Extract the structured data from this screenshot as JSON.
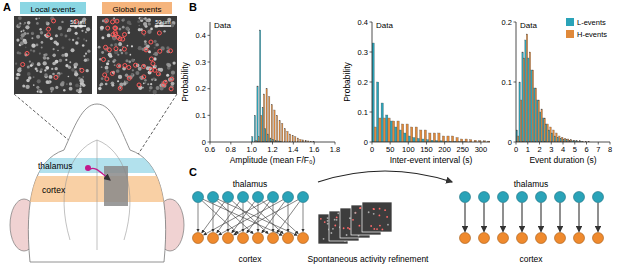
{
  "chart_data": [
    {
      "type": "histogram",
      "title": "Data",
      "x_label": "Amplitude (mean F/F₀)",
      "y_label": "Probability",
      "bins": [
        1,
        1.025,
        1.05,
        1.075,
        1.1,
        1.125,
        1.15,
        1.175,
        1.2,
        1.225,
        1.25,
        1.275,
        1.3,
        1.325,
        1.35,
        1.375,
        1.4,
        1.425,
        1.45,
        1.475,
        1.5,
        1.525,
        1.55,
        1.575,
        1.6
      ],
      "series": [
        {
          "color": "#2aa3b8",
          "values": [
            0.02,
            0.1,
            0.21,
            0.42,
            0.13,
            0.05,
            0.03,
            0.015,
            0.01,
            0.006,
            0.004,
            0.003,
            0,
            0,
            0,
            0,
            0,
            0,
            0,
            0,
            0,
            0,
            0,
            0
          ]
        },
        {
          "color": "#e0893a",
          "values": [
            0,
            0.005,
            0.02,
            0.1,
            0.18,
            0.2,
            0.17,
            0.14,
            0.12,
            0.1,
            0.08,
            0.07,
            0.05,
            0.04,
            0.03,
            0.025,
            0.02,
            0.015,
            0.01,
            0.008,
            0.006,
            0.004,
            0.003,
            0.002
          ]
        }
      ],
      "xlim": [
        0.6,
        1.8
      ],
      "xticks": [
        0.6,
        0.8,
        {
          "value": 1,
          "label": "1.0"
        },
        1.2,
        1.4,
        1.6,
        1.8
      ],
      "ylim": [
        0,
        0.45
      ],
      "yticks": [
        0,
        0.1,
        0.2,
        0.3,
        0.4
      ]
    },
    {
      "type": "histogram",
      "title": "Data",
      "x_label": "Inter-event interval (s)",
      "y_label": "Probability",
      "bins": [
        0,
        12.5,
        25,
        37.5,
        50,
        62.5,
        75,
        87.5,
        100,
        112.5,
        125,
        137.5,
        150,
        162.5,
        175,
        187.5,
        200,
        212.5,
        225,
        237.5,
        250,
        262.5,
        275,
        287.5,
        300,
        312.5,
        325
      ],
      "series": [
        {
          "color": "#2aa3b8",
          "values": [
            0.33,
            0.2,
            0.13,
            0.09,
            0.07,
            0.05,
            0.04,
            0.03,
            0.02,
            0.015,
            0.012,
            0.01,
            0.008,
            0.006,
            0.005,
            0.004,
            0.003,
            0.002,
            0.002,
            0.001,
            0.001,
            0,
            0,
            0,
            0,
            0
          ]
        },
        {
          "color": "#e0893a",
          "values": [
            0.05,
            0.08,
            0.08,
            0.08,
            0.07,
            0.07,
            0.06,
            0.06,
            0.05,
            0.05,
            0.04,
            0.04,
            0.03,
            0.03,
            0.03,
            0.02,
            0.02,
            0.02,
            0.015,
            0.01,
            0.01,
            0.008,
            0.006,
            0.005,
            0.004,
            0.003
          ]
        }
      ],
      "xlim": [
        0,
        325
      ],
      "xticks": [
        0,
        50,
        100,
        150,
        200,
        250,
        300
      ],
      "ylim": [
        0,
        0.4
      ],
      "yticks": [
        0,
        0.1,
        0.2,
        0.3,
        0.4
      ]
    },
    {
      "type": "histogram",
      "title": "Data",
      "x_label": "Event duration (s)",
      "legend": "upper right",
      "bins": [
        0,
        0.25,
        0.5,
        0.75,
        1,
        1.25,
        1.5,
        1.75,
        2,
        2.25,
        2.5,
        2.75,
        3,
        3.25,
        3.5,
        3.75,
        4,
        4.25,
        4.5,
        4.75,
        5,
        5.25,
        5.5,
        5.75,
        6,
        6.25,
        6.5,
        6.75,
        7
      ],
      "series": [
        {
          "name": "L-events",
          "color": "#2aa3b8",
          "values": [
            0.02,
            0.1,
            0.15,
            0.17,
            0.14,
            0.12,
            0.09,
            0.07,
            0.05,
            0.04,
            0.03,
            0.02,
            0.015,
            0.01,
            0.008,
            0.006,
            0.005,
            0.004,
            0.003,
            0.002,
            0.002,
            0.001,
            0.001,
            0,
            0,
            0,
            0,
            0
          ]
        },
        {
          "name": "H-events",
          "color": "#e0893a",
          "values": [
            0.01,
            0.07,
            0.14,
            0.18,
            0.15,
            0.12,
            0.09,
            0.07,
            0.055,
            0.04,
            0.03,
            0.025,
            0.02,
            0.015,
            0.01,
            0.008,
            0.006,
            0.005,
            0.004,
            0.003,
            0.002,
            0.002,
            0.001,
            0.001,
            0.001,
            0,
            0,
            0
          ]
        }
      ],
      "xlim": [
        0,
        8
      ],
      "xticks": [
        0,
        1,
        2,
        3,
        4,
        5,
        6,
        7,
        8
      ],
      "ylim": [
        0,
        0.2
      ],
      "yticks": [
        0,
        0.1,
        0.2
      ]
    }
  ],
  "figure": {
    "panel_labels": [
      "A",
      "B",
      "C"
    ],
    "panel_a": {
      "local": {
        "label": "Local events",
        "color": "#8ad6e3"
      },
      "global": {
        "label": "Global events",
        "color": "#f5b47c"
      },
      "scale_bar": "50 μm",
      "regions": [
        {
          "label": "thalamus",
          "color": "#9fdae8"
        },
        {
          "label": "cortex",
          "color": "#f8c48f"
        }
      ]
    },
    "panel_c": {
      "thalamus_label": "thalamus",
      "cortex_label": "cortex",
      "caption": "Spontaneous activity refinement",
      "nodes_per_row": 8,
      "thalamus_color": "#2aa3b8",
      "cortex_color": "#ef8a2e"
    }
  }
}
